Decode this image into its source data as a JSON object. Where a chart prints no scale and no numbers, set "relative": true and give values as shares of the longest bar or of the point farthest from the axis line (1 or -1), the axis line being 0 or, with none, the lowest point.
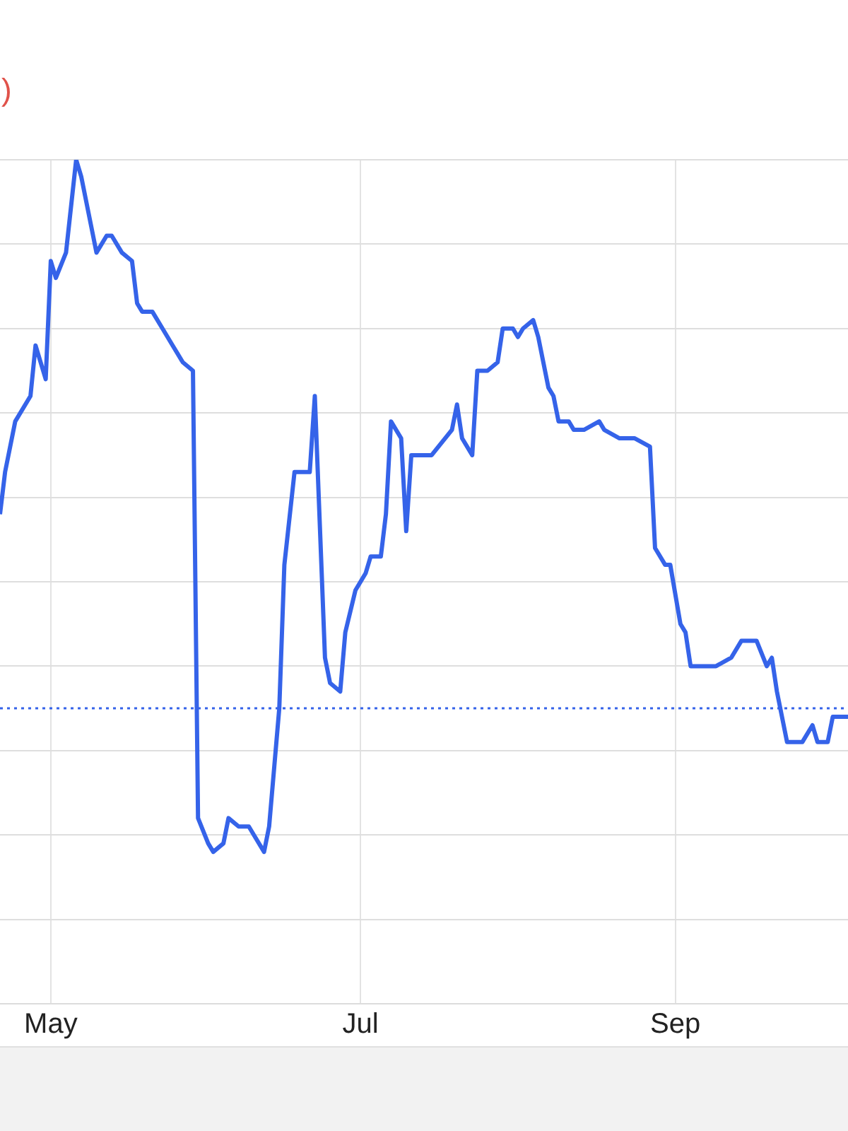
{
  "chart_data": {
    "type": "line",
    "relative": true,
    "annotations": [
      ")"
    ],
    "x": [
      "--04-21",
      "--04-22",
      "--04-24",
      "--04-27",
      "--04-28",
      "--04-30",
      "--05-01",
      "--05-02",
      "--05-04",
      "--05-06",
      "--05-07",
      "--05-09",
      "--05-10",
      "--05-12",
      "--05-13",
      "--05-15",
      "--05-17",
      "--05-18",
      "--05-19",
      "--05-21",
      "--05-23",
      "--05-25",
      "--05-27",
      "--05-29",
      "--05-30",
      "--06-01",
      "--06-02",
      "--06-04",
      "--06-05",
      "--06-07",
      "--06-09",
      "--06-10",
      "--06-12",
      "--06-13",
      "--06-15",
      "--06-16",
      "--06-18",
      "--06-21",
      "--06-22",
      "--06-24",
      "--06-25",
      "--06-27",
      "--06-28",
      "--06-30",
      "--07-02",
      "--07-03",
      "--07-05",
      "--07-06",
      "--07-07",
      "--07-09",
      "--07-10",
      "--07-11",
      "--07-15",
      "--07-19",
      "--07-20",
      "--07-21",
      "--07-23",
      "--07-24",
      "--07-26",
      "--07-28",
      "--07-29",
      "--07-31",
      "--08-01",
      "--08-02",
      "--08-04",
      "--08-05",
      "--08-07",
      "--08-08",
      "--08-09",
      "--08-11",
      "--08-12",
      "--08-14",
      "--08-17",
      "--08-18",
      "--08-21",
      "--08-24",
      "--08-27",
      "--08-28",
      "--08-30",
      "--08-31",
      "--09-02",
      "--09-03",
      "--09-04",
      "--09-06",
      "--09-09",
      "--09-12",
      "--09-14",
      "--09-16",
      "--09-17",
      "--09-19",
      "--09-20",
      "--09-21",
      "--09-23",
      "--09-24",
      "--09-26",
      "--09-28",
      "--09-29",
      "--10-01",
      "--10-02",
      "--10-05"
    ],
    "series": [
      {
        "color": "#3563e9",
        "values": [
          0.58,
          0.63,
          0.69,
          0.72,
          0.78,
          0.74,
          0.88,
          0.86,
          0.89,
          1,
          0.98,
          0.92,
          0.89,
          0.91,
          0.91,
          0.89,
          0.88,
          0.83,
          0.82,
          0.82,
          0.8,
          0.78,
          0.76,
          0.75,
          0.22,
          0.19,
          0.18,
          0.19,
          0.22,
          0.21,
          0.21,
          0.2,
          0.18,
          0.21,
          0.35,
          0.52,
          0.63,
          0.63,
          0.72,
          0.41,
          0.38,
          0.37,
          0.44,
          0.49,
          0.51,
          0.53,
          0.53,
          0.58,
          0.69,
          0.67,
          0.56,
          0.65,
          0.65,
          0.68,
          0.71,
          0.67,
          0.65,
          0.75,
          0.75,
          0.76,
          0.8,
          0.8,
          0.79,
          0.8,
          0.81,
          0.79,
          0.73,
          0.72,
          0.69,
          0.69,
          0.68,
          0.68,
          0.69,
          0.68,
          0.67,
          0.67,
          0.66,
          0.54,
          0.52,
          0.52,
          0.45,
          0.44,
          0.4,
          0.4,
          0.4,
          0.41,
          0.43,
          0.43,
          0.43,
          0.4,
          0.41,
          0.37,
          0.31,
          0.31,
          0.31,
          0.33,
          0.31,
          0.31,
          0.34,
          0.34
        ]
      }
    ],
    "xlim": [
      "--04-21",
      "--10-05"
    ],
    "xticks": [
      {
        "value": "--05-01",
        "label": "May"
      },
      {
        "value": "--07-01",
        "label": "Jul"
      },
      {
        "value": "--09-01",
        "label": "Sep"
      }
    ],
    "ref_lines": [
      {
        "axis": "y",
        "value": 0.35,
        "color": "#3563e9",
        "line_style": "dotted"
      }
    ],
    "grid": true,
    "marker": "none",
    "line_style": "solid",
    "legend": false
  }
}
